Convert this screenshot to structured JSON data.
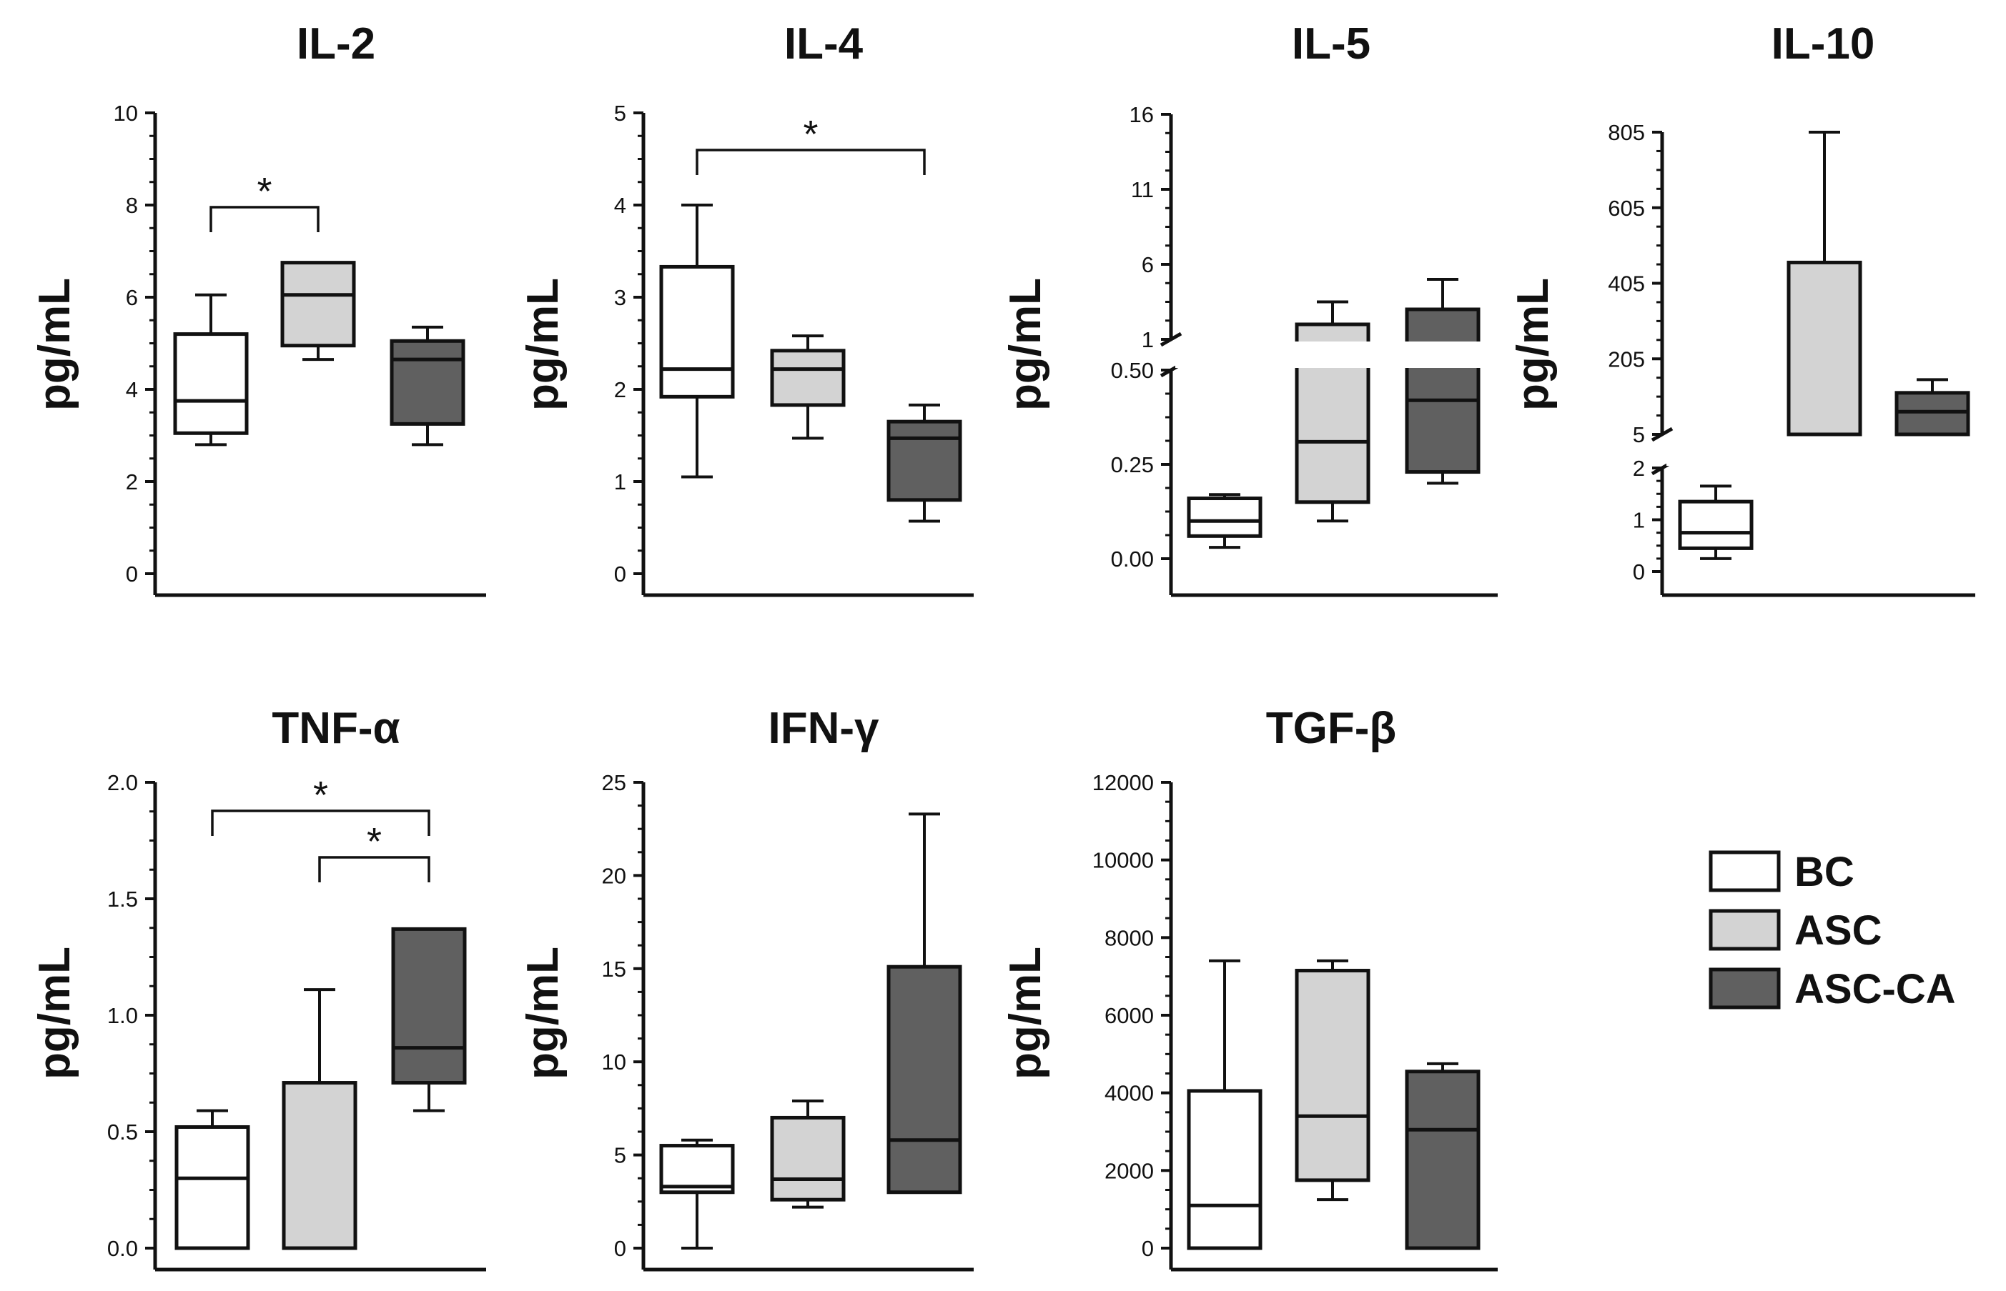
{
  "figure": {
    "legend": [
      {
        "label": "BC",
        "color": "#ffffff"
      },
      {
        "label": "ASC",
        "color": "#d3d3d3"
      },
      {
        "label": "ASC-CA",
        "color": "#606060"
      }
    ]
  },
  "chart_data": [
    {
      "type": "box",
      "title": "IL-2",
      "ylabel": "pg/mL",
      "ylim": [
        0,
        10
      ],
      "yticks": [
        "0",
        "2",
        "4",
        "6",
        "8",
        "10"
      ],
      "series": [
        {
          "name": "BC",
          "min": 2.8,
          "q1": 3.05,
          "median": 3.75,
          "q3": 5.2,
          "max": 6.05
        },
        {
          "name": "ASC",
          "min": 4.65,
          "q1": 4.95,
          "median": 6.05,
          "q3": 6.75,
          "max": 6.75
        },
        {
          "name": "ASC-CA",
          "min": 2.8,
          "q1": 3.25,
          "median": 4.65,
          "q3": 5.05,
          "max": 5.35
        }
      ],
      "significance": [
        {
          "from": "BC",
          "to": "ASC",
          "label": "*"
        }
      ]
    },
    {
      "type": "box",
      "title": "IL-4",
      "ylabel": "pg/mL",
      "ylim": [
        0,
        5
      ],
      "yticks": [
        "0",
        "1",
        "2",
        "3",
        "4",
        "5"
      ],
      "series": [
        {
          "name": "BC",
          "min": 1.05,
          "q1": 1.92,
          "median": 2.22,
          "q3": 3.33,
          "max": 4.0
        },
        {
          "name": "ASC",
          "min": 1.47,
          "q1": 1.83,
          "median": 2.22,
          "q3": 2.42,
          "max": 2.58
        },
        {
          "name": "ASC-CA",
          "min": 0.57,
          "q1": 0.8,
          "median": 1.47,
          "q3": 1.65,
          "max": 1.83
        }
      ],
      "significance": [
        {
          "from": "BC",
          "to": "ASC-CA",
          "label": "*"
        }
      ]
    },
    {
      "type": "box",
      "title": "IL-5",
      "ylabel": "pg/mL",
      "broken_axis": {
        "lower": [
          0,
          0.5
        ],
        "upper": [
          1,
          16
        ]
      },
      "yticks_lower": [
        "0.00",
        "0.25",
        "0.50"
      ],
      "yticks_upper": [
        "1",
        "6",
        "11",
        "16"
      ],
      "series": [
        {
          "name": "BC",
          "min": 0.03,
          "q1": 0.06,
          "median": 0.1,
          "q3": 0.16,
          "max": 0.17
        },
        {
          "name": "ASC",
          "min": 0.1,
          "q1": 0.15,
          "median": 0.31,
          "q3": 2.0,
          "max": 3.5
        },
        {
          "name": "ASC-CA",
          "min": 0.2,
          "q1": 0.23,
          "median": 0.42,
          "q3": 3.0,
          "max": 5.0
        }
      ],
      "significance": []
    },
    {
      "type": "box",
      "title": "IL-10",
      "ylabel": "pg/mL",
      "broken_axis": {
        "lower": [
          0,
          2
        ],
        "upper": [
          5,
          805
        ]
      },
      "yticks_lower": [
        "0",
        "1",
        "2"
      ],
      "yticks_upper": [
        "5",
        "205",
        "405",
        "605",
        "805"
      ],
      "series": [
        {
          "name": "BC",
          "min": 0.25,
          "q1": 0.45,
          "median": 0.75,
          "q3": 1.35,
          "max": 1.65
        },
        {
          "name": "ASC",
          "min": 5,
          "q1": 5,
          "median": 5,
          "q3": 460,
          "max": 805
        },
        {
          "name": "ASC-CA",
          "min": 5,
          "q1": 5,
          "median": 65,
          "q3": 115,
          "max": 150
        }
      ],
      "significance": []
    },
    {
      "type": "box",
      "title": "TNF-α",
      "ylabel": "pg/mL",
      "ylim": [
        0,
        2
      ],
      "yticks": [
        "0.0",
        "0.5",
        "1.0",
        "1.5",
        "2.0"
      ],
      "series": [
        {
          "name": "BC",
          "min": 0.0,
          "q1": 0.0,
          "median": 0.3,
          "q3": 0.52,
          "max": 0.59
        },
        {
          "name": "ASC",
          "min": 0.0,
          "q1": 0.0,
          "median": 0.0,
          "q3": 0.71,
          "max": 1.11
        },
        {
          "name": "ASC-CA",
          "min": 0.59,
          "q1": 0.71,
          "median": 0.86,
          "q3": 1.37,
          "max": 1.37
        }
      ],
      "significance": [
        {
          "from": "BC",
          "to": "ASC-CA",
          "label": "*"
        },
        {
          "from": "ASC",
          "to": "ASC-CA",
          "label": "*"
        }
      ]
    },
    {
      "type": "box",
      "title": "IFN-γ",
      "ylabel": "pg/mL",
      "ylim": [
        0,
        25
      ],
      "yticks": [
        "0",
        "5",
        "10",
        "15",
        "20",
        "25"
      ],
      "series": [
        {
          "name": "BC",
          "min": 0.0,
          "q1": 3.0,
          "median": 3.3,
          "q3": 5.5,
          "max": 5.8
        },
        {
          "name": "ASC",
          "min": 2.2,
          "q1": 2.6,
          "median": 3.7,
          "q3": 7.0,
          "max": 7.9
        },
        {
          "name": "ASC-CA",
          "min": 3.0,
          "q1": 3.0,
          "median": 5.8,
          "q3": 15.1,
          "max": 23.3
        }
      ],
      "significance": []
    },
    {
      "type": "box",
      "title": "TGF-β",
      "ylabel": "pg/mL",
      "ylim": [
        0,
        12000
      ],
      "yticks": [
        "0",
        "2000",
        "4000",
        "6000",
        "8000",
        "10000",
        "12000"
      ],
      "series": [
        {
          "name": "BC",
          "min": 0,
          "q1": 0,
          "median": 1100,
          "q3": 4050,
          "max": 7400
        },
        {
          "name": "ASC",
          "min": 1250,
          "q1": 1750,
          "median": 3400,
          "q3": 7150,
          "max": 7400
        },
        {
          "name": "ASC-CA",
          "min": 0,
          "q1": 0,
          "median": 3050,
          "q3": 4550,
          "max": 4750
        }
      ],
      "significance": []
    }
  ]
}
